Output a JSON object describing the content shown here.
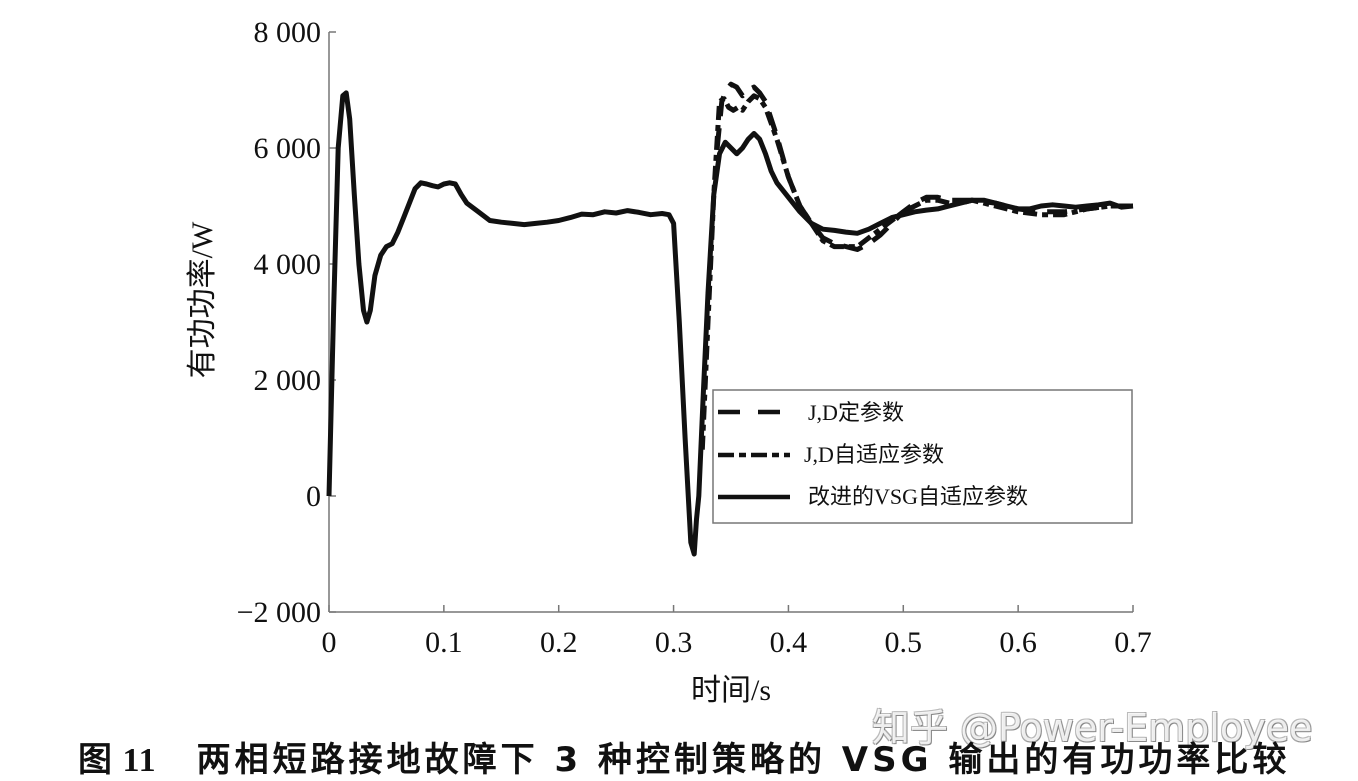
{
  "caption": {
    "figure_number": "图 11",
    "text": "两相短路接地故障下 3 种控制策略的 VSG 输出的有功功率比较"
  },
  "watermark": "知乎 @Power-Employee",
  "chart_data": {
    "type": "line",
    "title": "两相短路接地故障下 3 种控制策略的 VSG 输出的有功功率比较",
    "xlabel": "时间/s",
    "ylabel": "有功功率/W",
    "xlim": [
      0,
      0.7
    ],
    "ylim": [
      -2000,
      8000
    ],
    "xticks": [
      0,
      0.1,
      0.2,
      0.3,
      0.4,
      0.5,
      0.6,
      0.7
    ],
    "xtick_labels": [
      "0",
      "0.1",
      "0.2",
      "0.3",
      "0.4",
      "0.5",
      "0.6",
      "0.7"
    ],
    "yticks": [
      -2000,
      0,
      2000,
      4000,
      6000,
      8000
    ],
    "ytick_labels": [
      "−2 000",
      "0",
      "2 000",
      "4 000",
      "6 000",
      "8 000"
    ],
    "grid": false,
    "legend_position": "inside-center-right",
    "series": [
      {
        "name": "J,D定参数",
        "style": "dashed",
        "x": [
          0.338,
          0.342,
          0.346,
          0.35,
          0.355,
          0.36,
          0.365,
          0.37,
          0.375,
          0.38,
          0.39,
          0.4,
          0.41,
          0.42,
          0.43,
          0.44,
          0.45,
          0.46,
          0.47,
          0.48,
          0.49,
          0.5,
          0.51,
          0.52,
          0.53,
          0.54,
          0.55,
          0.56,
          0.58,
          0.6,
          0.62,
          0.64,
          0.66,
          0.68,
          0.7
        ],
        "y": [
          6000,
          6800,
          7000,
          7100,
          7050,
          6900,
          7000,
          7050,
          6950,
          6800,
          6200,
          5500,
          5000,
          4700,
          4450,
          4350,
          4300,
          4250,
          4350,
          4500,
          4700,
          4900,
          5050,
          5150,
          5150,
          5100,
          5100,
          5100,
          5050,
          4950,
          4900,
          4900,
          4950,
          5000,
          5000
        ]
      },
      {
        "name": "J,D自适应参数",
        "style": "dashdot",
        "x": [
          0.325,
          0.33,
          0.335,
          0.34,
          0.344,
          0.348,
          0.352,
          0.356,
          0.36,
          0.365,
          0.37,
          0.375,
          0.38,
          0.39,
          0.4,
          0.41,
          0.42,
          0.43,
          0.44,
          0.45,
          0.46,
          0.47,
          0.48,
          0.49,
          0.5,
          0.51,
          0.52,
          0.53,
          0.54,
          0.55,
          0.56,
          0.58,
          0.6,
          0.62,
          0.64,
          0.66,
          0.68,
          0.7
        ],
        "y": [
          800,
          3000,
          5200,
          6800,
          6850,
          6700,
          6650,
          6700,
          6650,
          6800,
          6900,
          6850,
          6700,
          6150,
          5500,
          5000,
          4700,
          4400,
          4300,
          4300,
          4300,
          4450,
          4600,
          4750,
          4900,
          5000,
          5100,
          5100,
          5050,
          5050,
          5100,
          5000,
          4900,
          4850,
          4850,
          4950,
          5000,
          5000
        ]
      },
      {
        "name": "改进的VSG自适应参数",
        "style": "solid",
        "x": [
          0.0,
          0.004,
          0.008,
          0.012,
          0.015,
          0.018,
          0.022,
          0.026,
          0.03,
          0.033,
          0.036,
          0.04,
          0.045,
          0.05,
          0.055,
          0.06,
          0.065,
          0.07,
          0.075,
          0.08,
          0.085,
          0.09,
          0.095,
          0.1,
          0.105,
          0.11,
          0.115,
          0.12,
          0.13,
          0.14,
          0.15,
          0.16,
          0.17,
          0.18,
          0.19,
          0.2,
          0.21,
          0.22,
          0.23,
          0.24,
          0.25,
          0.26,
          0.27,
          0.28,
          0.29,
          0.296,
          0.3,
          0.305,
          0.31,
          0.315,
          0.318,
          0.32,
          0.322,
          0.326,
          0.33,
          0.335,
          0.34,
          0.345,
          0.35,
          0.355,
          0.36,
          0.365,
          0.37,
          0.375,
          0.38,
          0.385,
          0.39,
          0.4,
          0.41,
          0.42,
          0.43,
          0.44,
          0.45,
          0.46,
          0.47,
          0.48,
          0.49,
          0.5,
          0.51,
          0.52,
          0.53,
          0.54,
          0.55,
          0.56,
          0.57,
          0.58,
          0.59,
          0.6,
          0.61,
          0.62,
          0.63,
          0.64,
          0.65,
          0.66,
          0.67,
          0.68,
          0.69,
          0.7
        ],
        "y": [
          0,
          3200,
          6000,
          6900,
          6950,
          6500,
          5200,
          4000,
          3200,
          3000,
          3200,
          3800,
          4150,
          4300,
          4350,
          4550,
          4800,
          5050,
          5300,
          5400,
          5380,
          5350,
          5330,
          5380,
          5400,
          5380,
          5200,
          5050,
          4900,
          4750,
          4720,
          4700,
          4680,
          4700,
          4720,
          4750,
          4800,
          4860,
          4850,
          4900,
          4880,
          4920,
          4890,
          4850,
          4870,
          4850,
          4700,
          3000,
          1000,
          -800,
          -1000,
          -400,
          0,
          1800,
          3500,
          5200,
          5900,
          6100,
          6000,
          5900,
          6000,
          6150,
          6250,
          6150,
          5900,
          5600,
          5400,
          5150,
          4900,
          4700,
          4600,
          4580,
          4550,
          4530,
          4600,
          4700,
          4800,
          4850,
          4900,
          4930,
          4950,
          5000,
          5050,
          5100,
          5100,
          5050,
          5000,
          4950,
          4950,
          5000,
          5020,
          5000,
          4980,
          5000,
          5020,
          5050,
          4980,
          5000
        ]
      }
    ]
  }
}
